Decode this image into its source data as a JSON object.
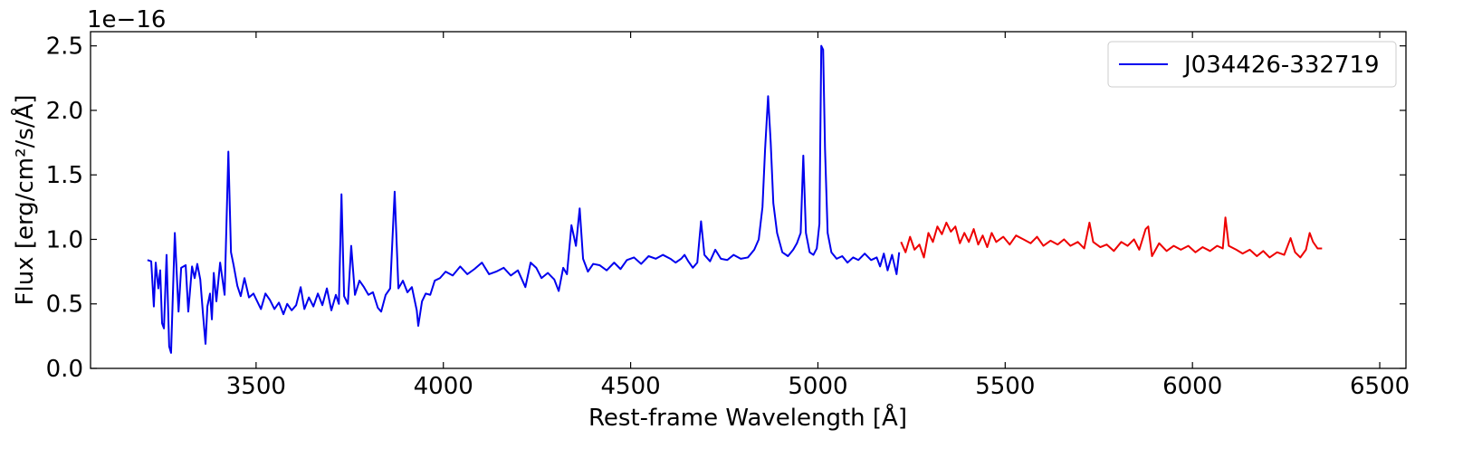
{
  "chart_data": {
    "type": "line",
    "xlabel": "Rest-frame Wavelength [Å]",
    "ylabel": "Flux [erg/cm²/s/Å]",
    "y_offset_label": "1e−16",
    "xlim": [
      3058,
      6570
    ],
    "xticks": [
      3500,
      4000,
      4500,
      5000,
      5500,
      6000,
      6500
    ],
    "ylim": [
      0,
      2.61
    ],
    "yticks": [
      {
        "value": 0,
        "label": "0.0"
      },
      0.5,
      {
        "value": 1,
        "label": "1.0"
      },
      1.5,
      {
        "value": 2,
        "label": "2.0"
      },
      2.5
    ],
    "legend": "upper right",
    "series": [
      {
        "name": "J034426-332719",
        "color": "#0000ee",
        "x": [
          3210,
          3220,
          3227,
          3232,
          3239,
          3244,
          3249,
          3254,
          3261,
          3268,
          3273,
          3283,
          3293,
          3300,
          3312,
          3319,
          3329,
          3336,
          3343,
          3351,
          3358,
          3365,
          3370,
          3377,
          3382,
          3387,
          3394,
          3404,
          3416,
          3426,
          3433,
          3440,
          3450,
          3459,
          3469,
          3481,
          3493,
          3503,
          3513,
          3525,
          3537,
          3549,
          3561,
          3573,
          3583,
          3595,
          3607,
          3619,
          3629,
          3641,
          3653,
          3665,
          3677,
          3689,
          3701,
          3713,
          3721,
          3728,
          3735,
          3745,
          3754,
          3764,
          3776,
          3788,
          3800,
          3812,
          3825,
          3834,
          3846,
          3858,
          3870,
          3880,
          3892,
          3904,
          3916,
          3929,
          3933,
          3943,
          3953,
          3965,
          3977,
          3991,
          4006,
          4025,
          4045,
          4064,
          4083,
          4103,
          4122,
          4141,
          4161,
          4180,
          4199,
          4219,
          4233,
          4248,
          4262,
          4279,
          4296,
          4308,
          4320,
          4330,
          4342,
          4354,
          4364,
          4373,
          4386,
          4400,
          4417,
          4436,
          4456,
          4473,
          4490,
          4509,
          4528,
          4548,
          4567,
          4586,
          4606,
          4620,
          4635,
          4644,
          4654,
          4666,
          4678,
          4688,
          4697,
          4712,
          4726,
          4741,
          4758,
          4775,
          4794,
          4813,
          4830,
          4842,
          4852,
          4859,
          4867,
          4874,
          4881,
          4891,
          4905,
          4920,
          4934,
          4944,
          4954,
          4961,
          4968,
          4978,
          4988,
          4997,
          5004,
          5009,
          5014,
          5019,
          5026,
          5036,
          5050,
          5065,
          5079,
          5094,
          5108,
          5125,
          5142,
          5157,
          5166,
          5176,
          5186,
          5198,
          5210,
          5217
        ],
        "values": [
          0.84,
          0.83,
          0.48,
          0.82,
          0.62,
          0.76,
          0.35,
          0.31,
          0.88,
          0.17,
          0.12,
          1.05,
          0.44,
          0.78,
          0.8,
          0.44,
          0.79,
          0.7,
          0.81,
          0.69,
          0.43,
          0.19,
          0.48,
          0.58,
          0.38,
          0.74,
          0.52,
          0.82,
          0.57,
          1.68,
          0.9,
          0.8,
          0.64,
          0.56,
          0.7,
          0.55,
          0.58,
          0.52,
          0.46,
          0.58,
          0.53,
          0.46,
          0.51,
          0.42,
          0.5,
          0.45,
          0.49,
          0.63,
          0.46,
          0.55,
          0.48,
          0.58,
          0.49,
          0.62,
          0.45,
          0.57,
          0.5,
          1.35,
          0.56,
          0.5,
          0.95,
          0.57,
          0.68,
          0.63,
          0.57,
          0.59,
          0.47,
          0.44,
          0.57,
          0.62,
          1.37,
          0.62,
          0.68,
          0.59,
          0.63,
          0.45,
          0.33,
          0.52,
          0.58,
          0.57,
          0.68,
          0.7,
          0.75,
          0.72,
          0.79,
          0.73,
          0.77,
          0.82,
          0.73,
          0.75,
          0.78,
          0.72,
          0.76,
          0.63,
          0.82,
          0.78,
          0.7,
          0.74,
          0.69,
          0.6,
          0.78,
          0.73,
          1.11,
          0.95,
          1.24,
          0.85,
          0.75,
          0.81,
          0.8,
          0.76,
          0.82,
          0.77,
          0.84,
          0.86,
          0.81,
          0.87,
          0.85,
          0.88,
          0.85,
          0.82,
          0.85,
          0.88,
          0.83,
          0.78,
          0.82,
          1.14,
          0.88,
          0.83,
          0.92,
          0.85,
          0.84,
          0.88,
          0.85,
          0.86,
          0.92,
          1.0,
          1.25,
          1.7,
          2.11,
          1.75,
          1.28,
          1.05,
          0.9,
          0.87,
          0.92,
          0.97,
          1.05,
          1.65,
          1.05,
          0.9,
          0.88,
          0.93,
          1.12,
          2.5,
          2.47,
          1.7,
          1.05,
          0.9,
          0.85,
          0.87,
          0.82,
          0.86,
          0.84,
          0.89,
          0.84,
          0.86,
          0.79,
          0.89,
          0.76,
          0.88,
          0.73,
          0.9
        ]
      },
      {
        "color": "#ee0000",
        "x": [
          5222,
          5234,
          5246,
          5258,
          5271,
          5283,
          5295,
          5307,
          5319,
          5331,
          5343,
          5355,
          5367,
          5379,
          5391,
          5403,
          5416,
          5428,
          5440,
          5452,
          5464,
          5476,
          5495,
          5512,
          5529,
          5549,
          5568,
          5585,
          5602,
          5621,
          5640,
          5657,
          5674,
          5694,
          5711,
          5725,
          5735,
          5754,
          5771,
          5790,
          5810,
          5827,
          5844,
          5858,
          5875,
          5882,
          5892,
          5911,
          5931,
          5950,
          5969,
          5989,
          6008,
          6027,
          6047,
          6066,
          6081,
          6088,
          6097,
          6117,
          6134,
          6153,
          6172,
          6189,
          6206,
          6226,
          6245,
          6262,
          6274,
          6288,
          6303,
          6313,
          6322,
          6334,
          6346
        ],
        "values": [
          0.98,
          0.9,
          1.02,
          0.92,
          0.96,
          0.86,
          1.05,
          0.98,
          1.1,
          1.04,
          1.13,
          1.06,
          1.1,
          0.97,
          1.05,
          0.98,
          1.08,
          0.96,
          1.03,
          0.94,
          1.05,
          0.98,
          1.02,
          0.96,
          1.03,
          1.0,
          0.97,
          1.02,
          0.95,
          0.99,
          0.96,
          1.0,
          0.95,
          0.98,
          0.93,
          1.13,
          0.98,
          0.94,
          0.96,
          0.91,
          0.98,
          0.95,
          1.0,
          0.92,
          1.08,
          1.1,
          0.87,
          0.97,
          0.91,
          0.95,
          0.92,
          0.95,
          0.9,
          0.94,
          0.91,
          0.95,
          0.93,
          1.17,
          0.95,
          0.92,
          0.89,
          0.92,
          0.87,
          0.91,
          0.86,
          0.9,
          0.88,
          1.01,
          0.9,
          0.86,
          0.92,
          1.05,
          0.98,
          0.93,
          0.93
        ]
      }
    ]
  }
}
